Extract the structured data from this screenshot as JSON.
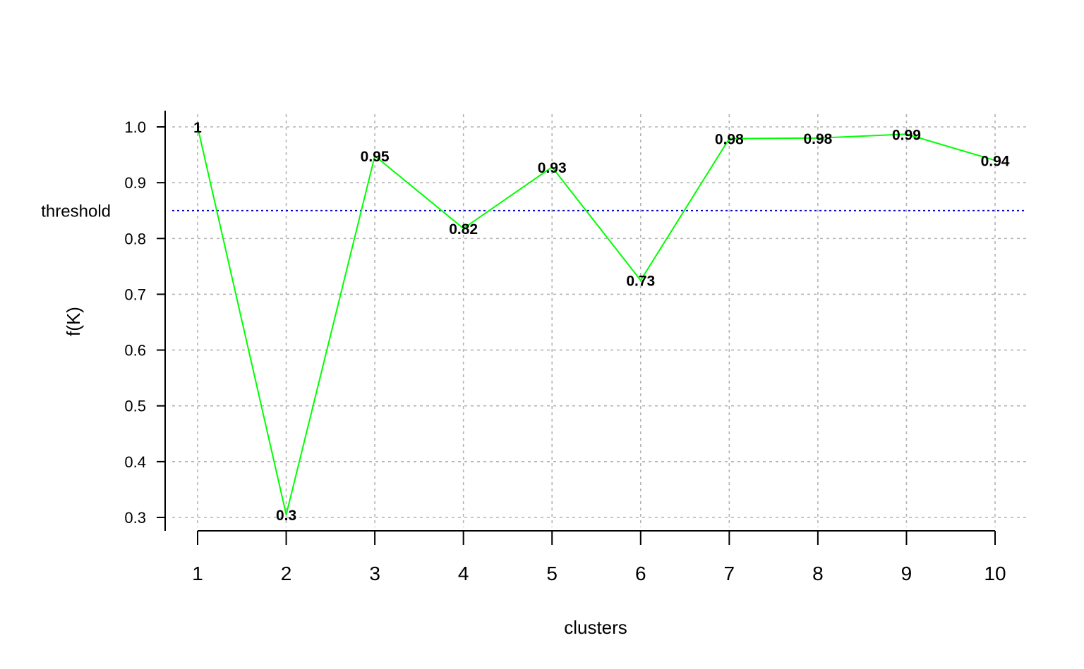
{
  "chart_data": {
    "type": "line",
    "xlabel": "clusters",
    "ylabel": "f(K)",
    "x": [
      1,
      2,
      3,
      4,
      5,
      6,
      7,
      8,
      9,
      10
    ],
    "values": [
      1.0,
      0.305,
      0.948,
      0.818,
      0.928,
      0.725,
      0.979,
      0.98,
      0.987,
      0.94
    ],
    "data_labels": [
      "1",
      "0.3",
      "0.95",
      "0.82",
      "0.93",
      "0.73",
      "0.98",
      "0.98",
      "0.99",
      "0.94"
    ],
    "x_ticks": [
      "1",
      "2",
      "3",
      "4",
      "5",
      "6",
      "7",
      "8",
      "9",
      "10"
    ],
    "y_ticks": [
      "0.3",
      "0.4",
      "0.5",
      "0.6",
      "0.7",
      "0.8",
      "0.9",
      "1.0"
    ],
    "y_tick_values": [
      0.3,
      0.4,
      0.5,
      0.6,
      0.7,
      0.8,
      0.9,
      1.0
    ],
    "xlim": [
      1,
      10
    ],
    "ylim": [
      0.3,
      1.0
    ],
    "grid": true,
    "threshold": {
      "value": 0.85,
      "label": "threshold",
      "color": "#0000cc"
    },
    "colors": {
      "line": "#00ff00",
      "grid": "#b3b3b3",
      "axis": "#000000"
    }
  }
}
